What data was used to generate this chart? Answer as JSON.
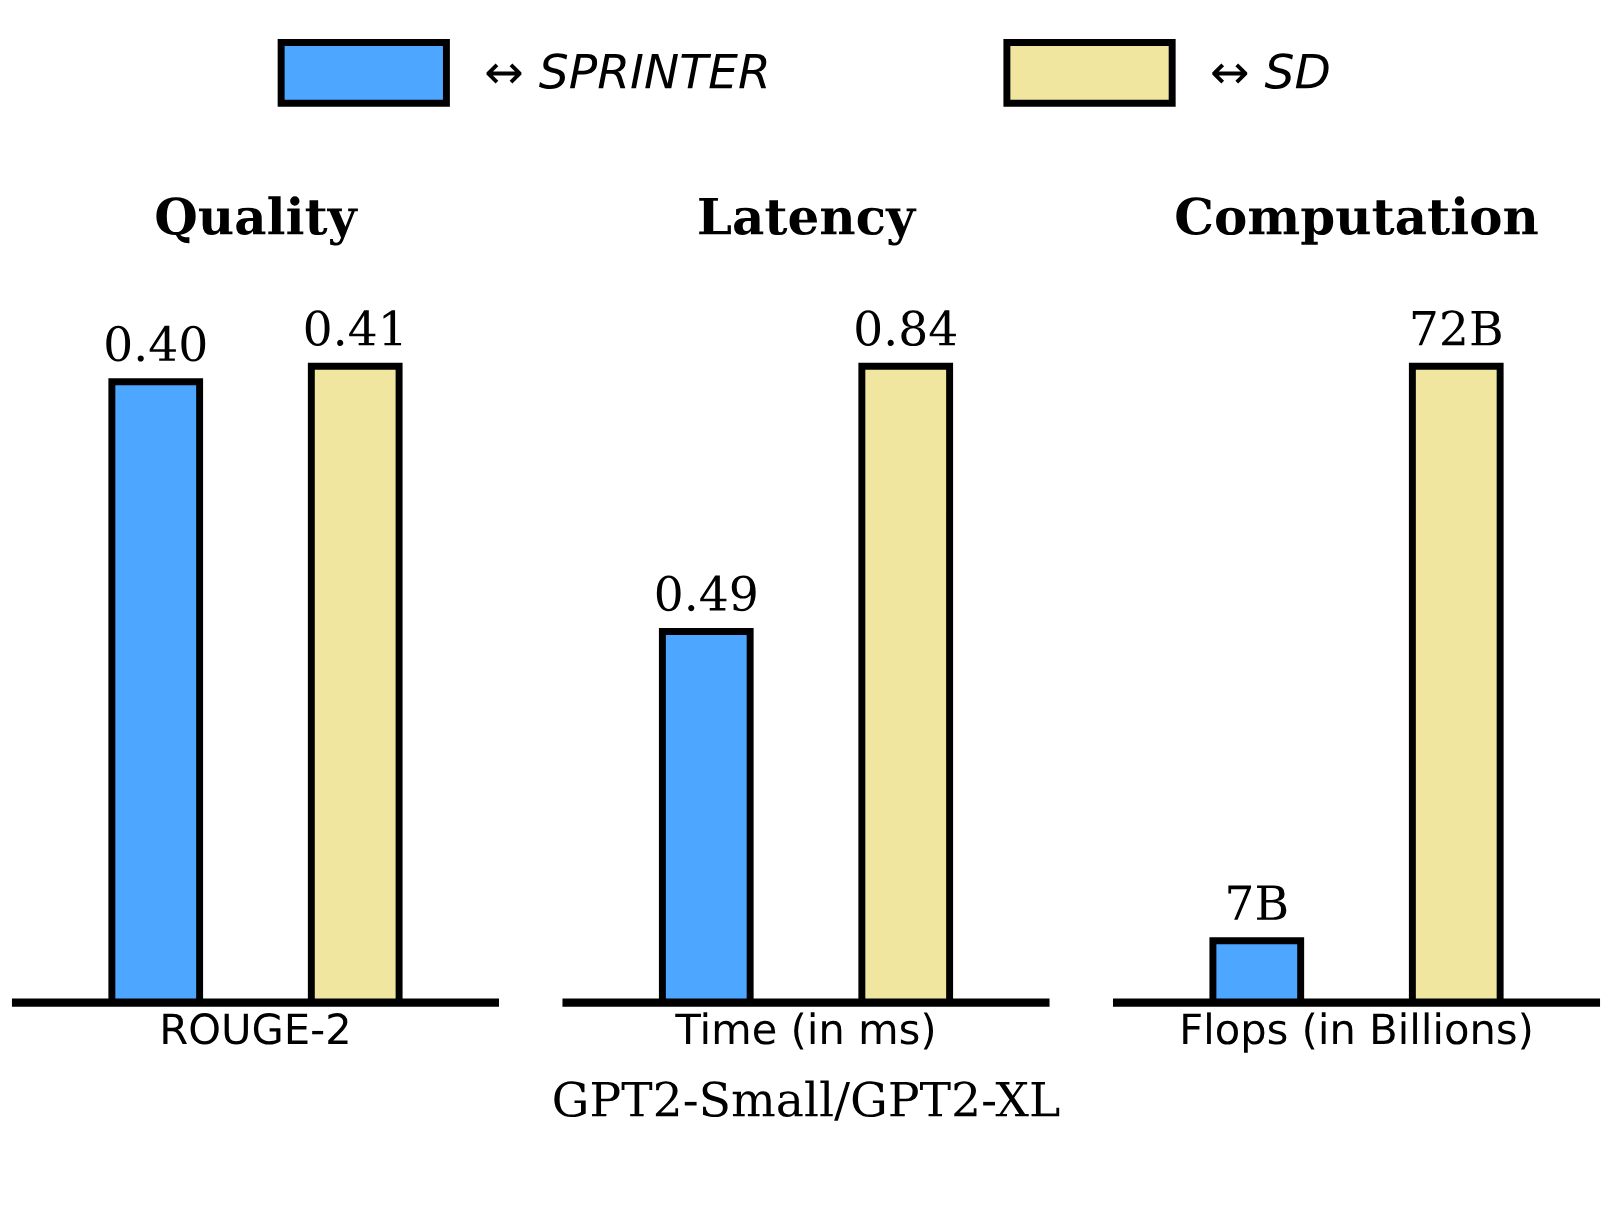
{
  "chart_data": [
    {
      "type": "bar",
      "title": "Quality",
      "categories": [
        "ROUGE-2"
      ],
      "legend": "top",
      "tick_labels": "x",
      "grid": false,
      "series": [
        {
          "name": "↔ SPRINTER",
          "color": "#4da6ff",
          "values": [
            0.4
          ],
          "value_labels": [
            "0.40"
          ]
        },
        {
          "name": "↔ SD",
          "color": "#f0e6a0",
          "values": [
            0.41
          ],
          "value_labels": [
            "0.41"
          ]
        }
      ]
    },
    {
      "type": "bar",
      "title": "Latency",
      "categories": [
        "Time (in ms)"
      ],
      "xlabel": "GPT2-Small/GPT2-XL",
      "tick_labels": "x",
      "grid": false,
      "series": [
        {
          "color": "#4da6ff",
          "values": [
            0.49
          ],
          "value_labels": [
            "0.49"
          ]
        },
        {
          "color": "#f0e6a0",
          "values": [
            0.84
          ],
          "value_labels": [
            "0.84"
          ]
        }
      ]
    },
    {
      "type": "bar",
      "title": "Computation",
      "categories": [
        "Flops (in Billions)"
      ],
      "tick_labels": "x",
      "grid": false,
      "series": [
        {
          "color": "#4da6ff",
          "values": [
            7
          ],
          "value_labels": [
            "7B"
          ]
        },
        {
          "color": "#f0e6a0",
          "values": [
            72
          ],
          "value_labels": [
            "72B"
          ]
        }
      ]
    }
  ]
}
